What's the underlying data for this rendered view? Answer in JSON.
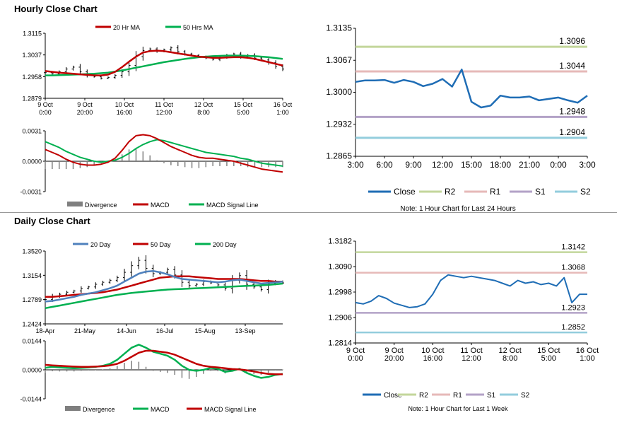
{
  "sections": {
    "hourly_title": "Hourly Close Chart",
    "daily_title": "Daily Close Chart"
  },
  "colors": {
    "ma_red": "#c00000",
    "ma_green": "#00b050",
    "ma_blue": "#4f81bd",
    "close_blue": "#1f6db5",
    "r2": "#c3d69b",
    "r1": "#e6b9b8",
    "s1": "#b3a2c7",
    "s2": "#93cddd",
    "divergence": "#7f7f7f"
  },
  "chart_data": [
    {
      "id": "hourly_price",
      "type": "line",
      "legend": [
        "20 Hr MA",
        "50 Hrs MA"
      ],
      "yticks": [
        "1.3115",
        "1.3037",
        "1.2958",
        "1.2879"
      ],
      "ylim": [
        1.2879,
        1.3115
      ],
      "xticks": [
        [
          "9 Oct",
          "0:00"
        ],
        [
          "9 Oct",
          "20:00"
        ],
        [
          "10 Oct",
          "16:00"
        ],
        [
          "11 Oct",
          "12:00"
        ],
        [
          "12 Oct",
          "8:00"
        ],
        [
          "15 Oct",
          "5:00"
        ],
        [
          "16 Oct",
          "1:00"
        ]
      ],
      "series": [
        {
          "name": "Close",
          "values": [
            1.2972,
            1.2968,
            1.2975,
            1.2985,
            1.2992,
            1.2975,
            1.2963,
            1.2958,
            1.2952,
            1.2955,
            1.2962,
            1.2975,
            1.2998,
            1.303,
            1.3052,
            1.3058,
            1.305,
            1.3055,
            1.3062,
            1.3048,
            1.304,
            1.3035,
            1.303,
            1.3025,
            1.302,
            1.3028,
            1.3035,
            1.304,
            1.303,
            1.3035,
            1.3025,
            1.3018,
            1.3008,
            1.2995,
            1.2985
          ]
        },
        {
          "name": "20 Hr MA",
          "values": [
            1.2978,
            1.2975,
            1.2972,
            1.297,
            1.2968,
            1.2966,
            1.2964,
            1.2962,
            1.2962,
            1.2965,
            1.2975,
            1.2992,
            1.3012,
            1.303,
            1.3045,
            1.305,
            1.3052,
            1.305,
            1.3046,
            1.3042,
            1.3038,
            1.3034,
            1.303,
            1.3028,
            1.3026,
            1.3026,
            1.3027,
            1.3028,
            1.3028,
            1.3026,
            1.3022,
            1.3016,
            1.301,
            1.3004,
            1.2998
          ]
        },
        {
          "name": "50 Hrs MA",
          "values": [
            1.2962,
            1.2962,
            1.2963,
            1.2964,
            1.2965,
            1.2966,
            1.2967,
            1.2968,
            1.297,
            1.2972,
            1.2976,
            1.298,
            1.2985,
            1.299,
            1.2995,
            1.3,
            1.3005,
            1.301,
            1.3014,
            1.3018,
            1.3022,
            1.3025,
            1.3028,
            1.303,
            1.3032,
            1.3033,
            1.3034,
            1.3034,
            1.3034,
            1.3033,
            1.3032,
            1.303,
            1.3028,
            1.3025,
            1.3022
          ]
        }
      ]
    },
    {
      "id": "hourly_macd",
      "type": "line",
      "legend": [
        "Divergence",
        "MACD",
        "MACD Signal Line"
      ],
      "yticks": [
        "0.0031",
        "0.0000",
        "-0.0031"
      ],
      "ylim": [
        -0.0031,
        0.0031
      ],
      "series": [
        {
          "name": "MACD",
          "values": [
            0.0012,
            0.0009,
            0.0006,
            0.0002,
            -0.0001,
            -0.0003,
            -0.0004,
            -0.0004,
            -0.0003,
            -0.0001,
            0.0003,
            0.0011,
            0.002,
            0.0026,
            0.0027,
            0.0026,
            0.0023,
            0.0019,
            0.0015,
            0.0012,
            0.0009,
            0.0006,
            0.0004,
            0.0003,
            0.0003,
            0.0002,
            0.0001,
            0.0,
            -0.0002,
            -0.0004,
            -0.0006,
            -0.0008,
            -0.0009,
            -0.001,
            -0.0011
          ]
        },
        {
          "name": "MACD Signal Line",
          "values": [
            0.002,
            0.0017,
            0.0014,
            0.001,
            0.0007,
            0.0004,
            0.0002,
            0.0,
            -0.0001,
            0.0,
            0.0001,
            0.0004,
            0.0008,
            0.0013,
            0.0017,
            0.002,
            0.0022,
            0.0021,
            0.0019,
            0.0017,
            0.0015,
            0.0013,
            0.0011,
            0.0009,
            0.0008,
            0.0007,
            0.0006,
            0.0005,
            0.0003,
            0.0002,
            0.0,
            -0.0002,
            -0.0003,
            -0.0004,
            -0.0005
          ]
        }
      ]
    },
    {
      "id": "hourly_24h",
      "type": "line",
      "yticks": [
        "1.3135",
        "1.3067",
        "1.3000",
        "1.2932",
        "1.2865"
      ],
      "ylim": [
        1.2865,
        1.3135
      ],
      "xticks": [
        "3:00",
        "6:00",
        "9:00",
        "12:00",
        "15:00",
        "18:00",
        "21:00",
        "0:00",
        "3:00"
      ],
      "levels": [
        {
          "name": "R2",
          "value": 1.3096,
          "label": "1.3096"
        },
        {
          "name": "R1",
          "value": 1.3044,
          "label": "1.3044"
        },
        {
          "name": "S1",
          "value": 1.2948,
          "label": "1.2948"
        },
        {
          "name": "S2",
          "value": 1.2904,
          "label": "1.2904"
        }
      ],
      "legend": [
        "Close",
        "R2",
        "R1",
        "S1",
        "S2"
      ],
      "note": "Note: 1 Hour Chart for Last 24 Hours",
      "series": [
        {
          "name": "Close",
          "values": [
            1.3022,
            1.3025,
            1.3025,
            1.3026,
            1.302,
            1.3026,
            1.3022,
            1.3013,
            1.3018,
            1.3028,
            1.3012,
            1.3048,
            1.298,
            1.2968,
            1.2972,
            1.2993,
            1.2989,
            1.2989,
            1.2991,
            1.2983,
            1.2986,
            1.2989,
            1.2983,
            1.2978,
            1.2993
          ]
        }
      ]
    },
    {
      "id": "daily_price",
      "type": "line",
      "legend": [
        "20 Day",
        "50 Day",
        "200 Day"
      ],
      "yticks": [
        "1.3520",
        "1.3154",
        "1.2789",
        "1.2424"
      ],
      "ylim": [
        1.2424,
        1.352
      ],
      "xticks": [
        "18-Apr",
        "21-May",
        "14-Jun",
        "16-Jul",
        "15-Aug",
        "13-Sep"
      ],
      "series": [
        {
          "name": "Close",
          "values": [
            1.279,
            1.284,
            1.287,
            1.29,
            1.292,
            1.296,
            1.298,
            1.302,
            1.305,
            1.308,
            1.312,
            1.32,
            1.33,
            1.338,
            1.326,
            1.318,
            1.32,
            1.324,
            1.316,
            1.305,
            1.3,
            1.302,
            1.306,
            1.304,
            1.301,
            1.296,
            1.308,
            1.315,
            1.302,
            1.298,
            1.294,
            1.303,
            1.306,
            1.304
          ]
        },
        {
          "name": "20 Day",
          "values": [
            1.276,
            1.277,
            1.279,
            1.281,
            1.283,
            1.286,
            1.288,
            1.29,
            1.293,
            1.296,
            1.3,
            1.306,
            1.312,
            1.318,
            1.321,
            1.322,
            1.32,
            1.317,
            1.313,
            1.31,
            1.309,
            1.308,
            1.307,
            1.306,
            1.305,
            1.306,
            1.308,
            1.309,
            1.307,
            1.305,
            1.303,
            1.304,
            1.305,
            1.306
          ]
        },
        {
          "name": "50 Day",
          "values": [
            1.283,
            1.283,
            1.284,
            1.285,
            1.286,
            1.287,
            1.288,
            1.289,
            1.29,
            1.292,
            1.294,
            1.297,
            1.3,
            1.303,
            1.306,
            1.309,
            1.312,
            1.313,
            1.314,
            1.314,
            1.314,
            1.313,
            1.312,
            1.311,
            1.31,
            1.31,
            1.31,
            1.31,
            1.309,
            1.308,
            1.307,
            1.307,
            1.306,
            1.306
          ]
        },
        {
          "name": "200 Day",
          "values": [
            1.266,
            1.268,
            1.27,
            1.272,
            1.274,
            1.276,
            1.278,
            1.28,
            1.282,
            1.284,
            1.286,
            1.2875,
            1.289,
            1.29,
            1.291,
            1.292,
            1.293,
            1.294,
            1.2945,
            1.295,
            1.2955,
            1.296,
            1.2965,
            1.297,
            1.2975,
            1.298,
            1.2985,
            1.299,
            1.2995,
            1.3,
            1.3005,
            1.301,
            1.302,
            1.303
          ]
        }
      ]
    },
    {
      "id": "daily_macd",
      "type": "line",
      "legend": [
        "Divergence",
        "MACD",
        "MACD Signal Line"
      ],
      "yticks": [
        "0.0144",
        "0.0000",
        "-0.0144"
      ],
      "ylim": [
        -0.0144,
        0.0144
      ],
      "series": [
        {
          "name": "MACD",
          "values": [
            0.001,
            0.0015,
            0.0012,
            0.001,
            0.0008,
            0.001,
            0.0012,
            0.0015,
            0.002,
            0.003,
            0.005,
            0.008,
            0.011,
            0.0125,
            0.011,
            0.009,
            0.008,
            0.007,
            0.005,
            0.002,
            0.0,
            -0.0005,
            0.0,
            0.001,
            0.0005,
            -0.001,
            -0.0005,
            0.0005,
            -0.0015,
            -0.003,
            -0.004,
            -0.0035,
            -0.0025,
            -0.002
          ]
        },
        {
          "name": "MACD Signal Line",
          "values": [
            0.0025,
            0.0022,
            0.002,
            0.0018,
            0.0016,
            0.0015,
            0.0015,
            0.0016,
            0.0018,
            0.0022,
            0.003,
            0.0045,
            0.0065,
            0.0085,
            0.0095,
            0.0095,
            0.009,
            0.0085,
            0.0075,
            0.006,
            0.0045,
            0.003,
            0.002,
            0.0015,
            0.0012,
            0.0008,
            0.0004,
            0.0002,
            -0.0002,
            -0.0008,
            -0.0015,
            -0.002,
            -0.0022,
            -0.0022
          ]
        }
      ]
    },
    {
      "id": "daily_week",
      "type": "line",
      "yticks": [
        "1.3182",
        "1.3090",
        "1.2998",
        "1.2906",
        "1.2814"
      ],
      "ylim": [
        1.2814,
        1.3182
      ],
      "xticks": [
        [
          "9 Oct",
          "0:00"
        ],
        [
          "9 Oct",
          "20:00"
        ],
        [
          "10 Oct",
          "16:00"
        ],
        [
          "11 Oct",
          "12:00"
        ],
        [
          "12 Oct",
          "8:00"
        ],
        [
          "15 Oct",
          "5:00"
        ],
        [
          "16 Oct",
          "1:00"
        ]
      ],
      "levels": [
        {
          "name": "R2",
          "value": 1.3142,
          "label": "1.3142"
        },
        {
          "name": "R1",
          "value": 1.3068,
          "label": "1.3068"
        },
        {
          "name": "S1",
          "value": 1.2923,
          "label": "1.2923"
        },
        {
          "name": "S2",
          "value": 1.2852,
          "label": "1.2852"
        }
      ],
      "legend": [
        "Close",
        "R2",
        "R1",
        "S1",
        "S2"
      ],
      "note": "Note: 1 Hour Chart for Last 1 Week",
      "series": [
        {
          "name": "Close",
          "values": [
            1.296,
            1.2955,
            1.2965,
            1.2985,
            1.2975,
            1.2958,
            1.295,
            1.2942,
            1.2945,
            1.2955,
            1.299,
            1.304,
            1.306,
            1.3055,
            1.305,
            1.3055,
            1.305,
            1.3045,
            1.304,
            1.303,
            1.302,
            1.304,
            1.303,
            1.3035,
            1.3025,
            1.303,
            1.302,
            1.305,
            1.296,
            1.299,
            1.299
          ]
        }
      ]
    }
  ]
}
